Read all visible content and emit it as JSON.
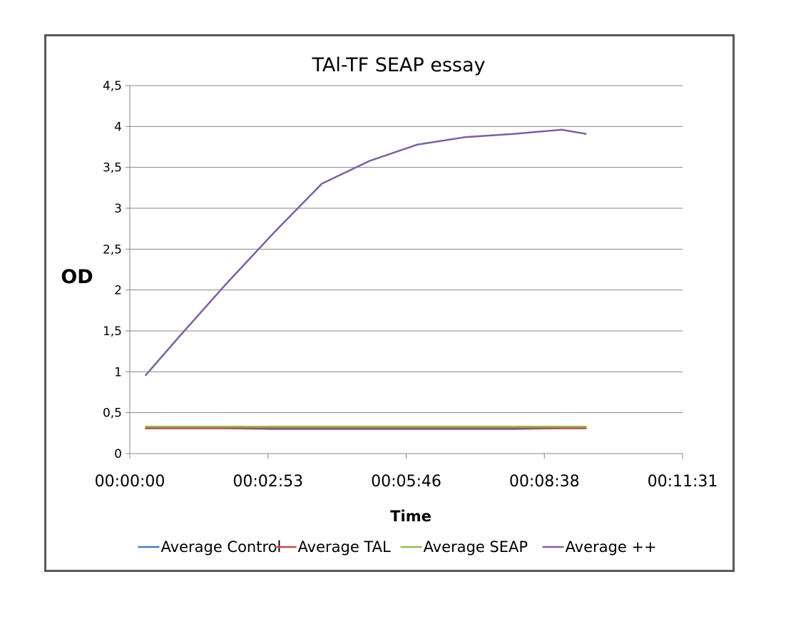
{
  "chart_data": {
    "type": "line",
    "title": "TAl-TF SEAP essay",
    "xlabel": "Time",
    "ylabel": "OD",
    "x_tick_labels": [
      "00:00:00",
      "00:02:53",
      "00:05:46",
      "00:08:38",
      "00:11:31"
    ],
    "y_tick_labels": [
      "0",
      "0,5",
      "1",
      "1,5",
      "2",
      "2,5",
      "3",
      "3,5",
      "4",
      "4,5"
    ],
    "xlim_seconds": [
      0,
      691
    ],
    "ylim": [
      0,
      4.5
    ],
    "y_grid": true,
    "legend_position": "bottom",
    "x_seconds": [
      20,
      60,
      120,
      180,
      240,
      300,
      360,
      420,
      480,
      540,
      570
    ],
    "series": [
      {
        "name": "Average Control",
        "color": "#4a7ebb",
        "values": [
          0.31,
          0.31,
          0.31,
          0.3,
          0.3,
          0.3,
          0.3,
          0.3,
          0.3,
          0.31,
          0.31
        ]
      },
      {
        "name": "Average TAL",
        "color": "#be4b48",
        "values": [
          0.31,
          0.31,
          0.31,
          0.31,
          0.31,
          0.31,
          0.31,
          0.31,
          0.31,
          0.31,
          0.31
        ]
      },
      {
        "name": "Average SEAP",
        "color": "#98b954",
        "values": [
          0.33,
          0.33,
          0.33,
          0.33,
          0.33,
          0.33,
          0.33,
          0.33,
          0.33,
          0.33,
          0.33
        ]
      },
      {
        "name": "Average ++",
        "color": "#7d60a0",
        "values": [
          0.96,
          1.41,
          2.07,
          2.7,
          3.3,
          3.58,
          3.78,
          3.87,
          3.91,
          3.96,
          3.91
        ]
      }
    ]
  }
}
